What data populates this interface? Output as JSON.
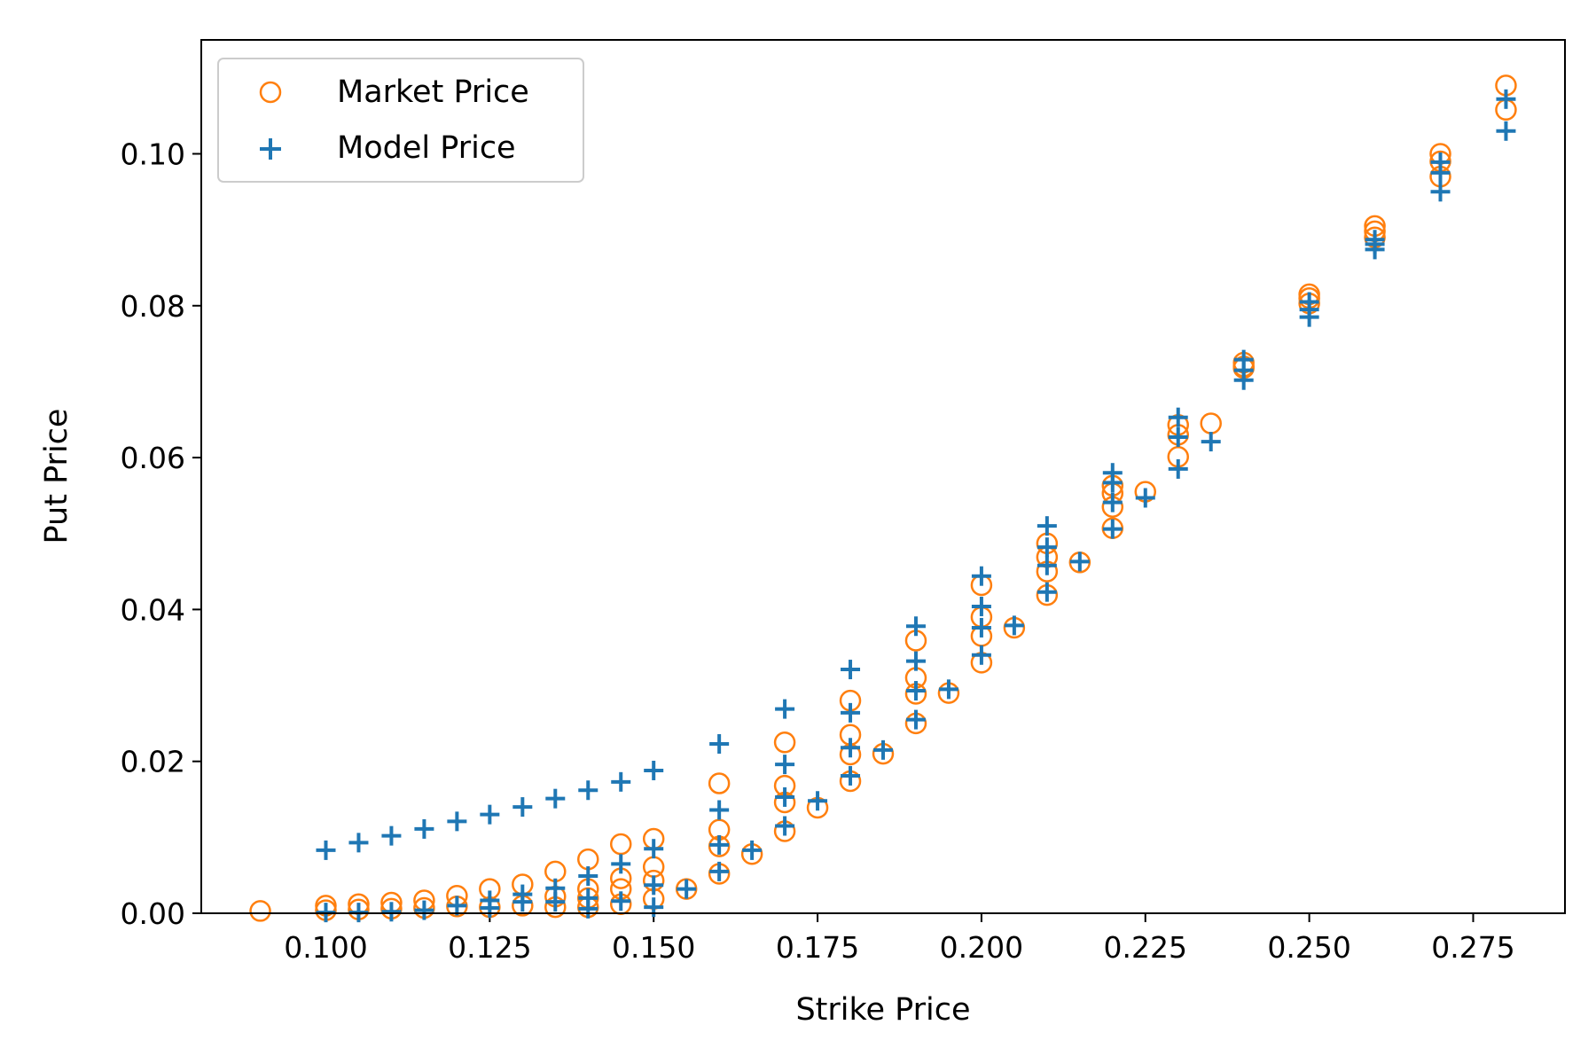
{
  "chart_data": {
    "type": "scatter",
    "title": "",
    "xlabel": "Strike Price",
    "ylabel": "Put Price",
    "xlim": [
      0.081,
      0.289
    ],
    "ylim": [
      0.0,
      0.115
    ],
    "x_ticks": [
      "0.100",
      "0.125",
      "0.150",
      "0.175",
      "0.200",
      "0.225",
      "0.250",
      "0.275"
    ],
    "y_ticks": [
      "0.00",
      "0.02",
      "0.04",
      "0.06",
      "0.08",
      "0.10"
    ],
    "grid": false,
    "legend_position": "top-left",
    "series": [
      {
        "name": "Market Price",
        "marker": "open-circle",
        "color": "#ff7f0e",
        "points": [
          [
            0.09,
            0.0003
          ],
          [
            0.1,
            0.001
          ],
          [
            0.1,
            0.0004
          ],
          [
            0.105,
            0.0012
          ],
          [
            0.105,
            0.0005
          ],
          [
            0.11,
            0.0014
          ],
          [
            0.11,
            0.0006
          ],
          [
            0.115,
            0.0017
          ],
          [
            0.115,
            0.0007
          ],
          [
            0.12,
            0.0023
          ],
          [
            0.12,
            0.0009
          ],
          [
            0.125,
            0.0032
          ],
          [
            0.125,
            0.0008
          ],
          [
            0.13,
            0.0038
          ],
          [
            0.13,
            0.001
          ],
          [
            0.135,
            0.0055
          ],
          [
            0.135,
            0.0022
          ],
          [
            0.135,
            0.0008
          ],
          [
            0.14,
            0.0071
          ],
          [
            0.14,
            0.0032
          ],
          [
            0.14,
            0.002
          ],
          [
            0.14,
            0.0008
          ],
          [
            0.145,
            0.0091
          ],
          [
            0.145,
            0.0046
          ],
          [
            0.145,
            0.0032
          ],
          [
            0.145,
            0.0012
          ],
          [
            0.15,
            0.0098
          ],
          [
            0.15,
            0.0061
          ],
          [
            0.15,
            0.0043
          ],
          [
            0.15,
            0.0019
          ],
          [
            0.155,
            0.0032
          ],
          [
            0.16,
            0.0171
          ],
          [
            0.16,
            0.011
          ],
          [
            0.16,
            0.0088
          ],
          [
            0.16,
            0.0052
          ],
          [
            0.165,
            0.0078
          ],
          [
            0.17,
            0.0225
          ],
          [
            0.17,
            0.0168
          ],
          [
            0.17,
            0.0146
          ],
          [
            0.17,
            0.0108
          ],
          [
            0.175,
            0.0139
          ],
          [
            0.18,
            0.028
          ],
          [
            0.18,
            0.0235
          ],
          [
            0.18,
            0.0209
          ],
          [
            0.18,
            0.0174
          ],
          [
            0.185,
            0.021
          ],
          [
            0.19,
            0.0359
          ],
          [
            0.19,
            0.031
          ],
          [
            0.19,
            0.0289
          ],
          [
            0.19,
            0.025
          ],
          [
            0.195,
            0.029
          ],
          [
            0.2,
            0.0432
          ],
          [
            0.2,
            0.039
          ],
          [
            0.2,
            0.0365
          ],
          [
            0.2,
            0.033
          ],
          [
            0.205,
            0.0376
          ],
          [
            0.21,
            0.0487
          ],
          [
            0.21,
            0.0469
          ],
          [
            0.21,
            0.045
          ],
          [
            0.21,
            0.0419
          ],
          [
            0.215,
            0.0462
          ],
          [
            0.22,
            0.0563
          ],
          [
            0.22,
            0.0553
          ],
          [
            0.22,
            0.0535
          ],
          [
            0.22,
            0.0507
          ],
          [
            0.225,
            0.0555
          ],
          [
            0.23,
            0.0643
          ],
          [
            0.23,
            0.063
          ],
          [
            0.23,
            0.0601
          ],
          [
            0.235,
            0.0645
          ],
          [
            0.24,
            0.0725
          ],
          [
            0.24,
            0.072
          ],
          [
            0.24,
            0.0718
          ],
          [
            0.25,
            0.0815
          ],
          [
            0.25,
            0.081
          ],
          [
            0.25,
            0.0803
          ],
          [
            0.26,
            0.0905
          ],
          [
            0.26,
            0.0898
          ],
          [
            0.26,
            0.089
          ],
          [
            0.27,
            0.1
          ],
          [
            0.27,
            0.099
          ],
          [
            0.27,
            0.097
          ],
          [
            0.28,
            0.109
          ],
          [
            0.28,
            0.1058
          ]
        ]
      },
      {
        "name": "Model Price",
        "marker": "plus",
        "color": "#1f77b4",
        "points": [
          [
            0.1,
            0.0083
          ],
          [
            0.1,
            0.0001
          ],
          [
            0.105,
            0.0093
          ],
          [
            0.105,
            0.0001
          ],
          [
            0.11,
            0.0102
          ],
          [
            0.11,
            0.0002
          ],
          [
            0.115,
            0.0111
          ],
          [
            0.115,
            0.0004
          ],
          [
            0.12,
            0.0121
          ],
          [
            0.12,
            0.001
          ],
          [
            0.125,
            0.013
          ],
          [
            0.125,
            0.0017
          ],
          [
            0.125,
            0.0007
          ],
          [
            0.13,
            0.014
          ],
          [
            0.13,
            0.0025
          ],
          [
            0.13,
            0.0015
          ],
          [
            0.135,
            0.0151
          ],
          [
            0.135,
            0.0033
          ],
          [
            0.135,
            0.0015
          ],
          [
            0.14,
            0.0162
          ],
          [
            0.14,
            0.0049
          ],
          [
            0.14,
            0.002
          ],
          [
            0.14,
            0.0006
          ],
          [
            0.145,
            0.0173
          ],
          [
            0.145,
            0.0065
          ],
          [
            0.145,
            0.0016
          ],
          [
            0.15,
            0.0188
          ],
          [
            0.15,
            0.0085
          ],
          [
            0.15,
            0.0037
          ],
          [
            0.15,
            0.0008
          ],
          [
            0.155,
            0.0032
          ],
          [
            0.16,
            0.0223
          ],
          [
            0.16,
            0.0136
          ],
          [
            0.16,
            0.009
          ],
          [
            0.16,
            0.0055
          ],
          [
            0.165,
            0.0083
          ],
          [
            0.17,
            0.0269
          ],
          [
            0.17,
            0.0196
          ],
          [
            0.17,
            0.0153
          ],
          [
            0.17,
            0.0115
          ],
          [
            0.175,
            0.0148
          ],
          [
            0.18,
            0.0321
          ],
          [
            0.18,
            0.0264
          ],
          [
            0.18,
            0.0218
          ],
          [
            0.18,
            0.0181
          ],
          [
            0.185,
            0.0215
          ],
          [
            0.19,
            0.0378
          ],
          [
            0.19,
            0.0332
          ],
          [
            0.19,
            0.0293
          ],
          [
            0.19,
            0.0255
          ],
          [
            0.195,
            0.0295
          ],
          [
            0.2,
            0.0444
          ],
          [
            0.2,
            0.0404
          ],
          [
            0.2,
            0.0376
          ],
          [
            0.2,
            0.034
          ],
          [
            0.205,
            0.0379
          ],
          [
            0.21,
            0.051
          ],
          [
            0.21,
            0.0482
          ],
          [
            0.21,
            0.0458
          ],
          [
            0.21,
            0.0423
          ],
          [
            0.215,
            0.0463
          ],
          [
            0.22,
            0.058
          ],
          [
            0.22,
            0.0567
          ],
          [
            0.22,
            0.0541
          ],
          [
            0.22,
            0.0506
          ],
          [
            0.225,
            0.0547
          ],
          [
            0.23,
            0.0653
          ],
          [
            0.23,
            0.0627
          ],
          [
            0.23,
            0.0585
          ],
          [
            0.235,
            0.0621
          ],
          [
            0.24,
            0.0729
          ],
          [
            0.24,
            0.0715
          ],
          [
            0.24,
            0.0702
          ],
          [
            0.25,
            0.0805
          ],
          [
            0.25,
            0.0795
          ],
          [
            0.25,
            0.0785
          ],
          [
            0.26,
            0.0887
          ],
          [
            0.26,
            0.0881
          ],
          [
            0.26,
            0.0874
          ],
          [
            0.27,
            0.0989
          ],
          [
            0.27,
            0.0975
          ],
          [
            0.27,
            0.095
          ],
          [
            0.28,
            0.1072
          ],
          [
            0.28,
            0.103
          ]
        ]
      }
    ]
  }
}
